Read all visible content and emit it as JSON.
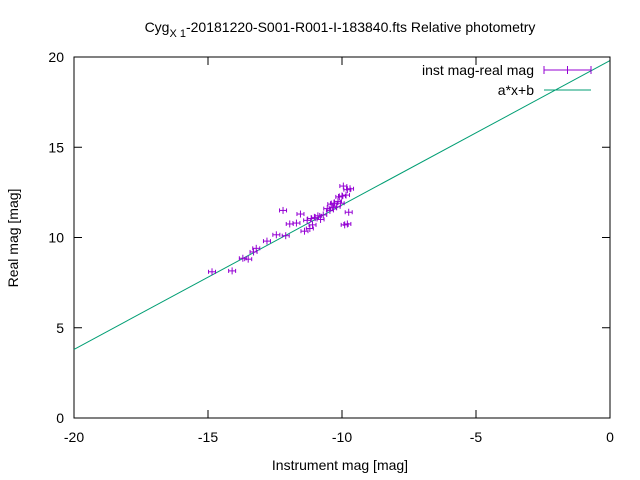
{
  "chart_data": {
    "type": "scatter",
    "title_main": "Cyg",
    "title_sub": "X 1",
    "title_rest": "-20181220-S001-R001-I-183840.fts Relative photometry",
    "xlabel": "Instrument mag [mag]",
    "ylabel": "Real mag [mag]",
    "xlim": [
      -20,
      0
    ],
    "ylim": [
      0,
      20
    ],
    "xticks": [
      -20,
      -15,
      -10,
      -5,
      0
    ],
    "yticks": [
      0,
      5,
      10,
      15,
      20
    ],
    "grid": false,
    "legend_position": "top-right",
    "colors": {
      "points": "#9400d3",
      "fit": "#009e73",
      "axis": "#000000"
    },
    "series": [
      {
        "name": "inst mag-real mag",
        "kind": "points-errorbars",
        "points": [
          {
            "x": -14.85,
            "y": 8.1
          },
          {
            "x": -14.1,
            "y": 8.15
          },
          {
            "x": -13.7,
            "y": 8.85
          },
          {
            "x": -13.5,
            "y": 8.8
          },
          {
            "x": -13.3,
            "y": 9.2
          },
          {
            "x": -13.2,
            "y": 9.4
          },
          {
            "x": -12.8,
            "y": 9.8
          },
          {
            "x": -12.45,
            "y": 10.15
          },
          {
            "x": -12.2,
            "y": 11.5
          },
          {
            "x": -12.1,
            "y": 10.1
          },
          {
            "x": -11.95,
            "y": 10.75
          },
          {
            "x": -11.7,
            "y": 10.8
          },
          {
            "x": -11.55,
            "y": 11.3
          },
          {
            "x": -11.4,
            "y": 10.35
          },
          {
            "x": -11.3,
            "y": 10.95
          },
          {
            "x": -11.2,
            "y": 10.5
          },
          {
            "x": -11.15,
            "y": 11.05
          },
          {
            "x": -11.1,
            "y": 10.7
          },
          {
            "x": -11.0,
            "y": 11.1
          },
          {
            "x": -10.9,
            "y": 11.2
          },
          {
            "x": -10.8,
            "y": 11.0
          },
          {
            "x": -10.7,
            "y": 11.25
          },
          {
            "x": -10.55,
            "y": 11.6
          },
          {
            "x": -10.45,
            "y": 11.5
          },
          {
            "x": -10.4,
            "y": 11.85
          },
          {
            "x": -10.35,
            "y": 11.65
          },
          {
            "x": -10.3,
            "y": 11.9
          },
          {
            "x": -10.2,
            "y": 11.7
          },
          {
            "x": -10.15,
            "y": 12.0
          },
          {
            "x": -10.1,
            "y": 12.25
          },
          {
            "x": -10.05,
            "y": 11.9
          },
          {
            "x": -10.0,
            "y": 12.3
          },
          {
            "x": -9.95,
            "y": 12.85
          },
          {
            "x": -9.9,
            "y": 10.7
          },
          {
            "x": -9.85,
            "y": 12.35
          },
          {
            "x": -9.8,
            "y": 12.65
          },
          {
            "x": -9.75,
            "y": 11.4
          },
          {
            "x": -9.7,
            "y": 12.7
          },
          {
            "x": -9.8,
            "y": 10.75
          }
        ]
      },
      {
        "name": "a*x+b",
        "kind": "line",
        "a": 0.8,
        "b": 19.8
      }
    ]
  }
}
